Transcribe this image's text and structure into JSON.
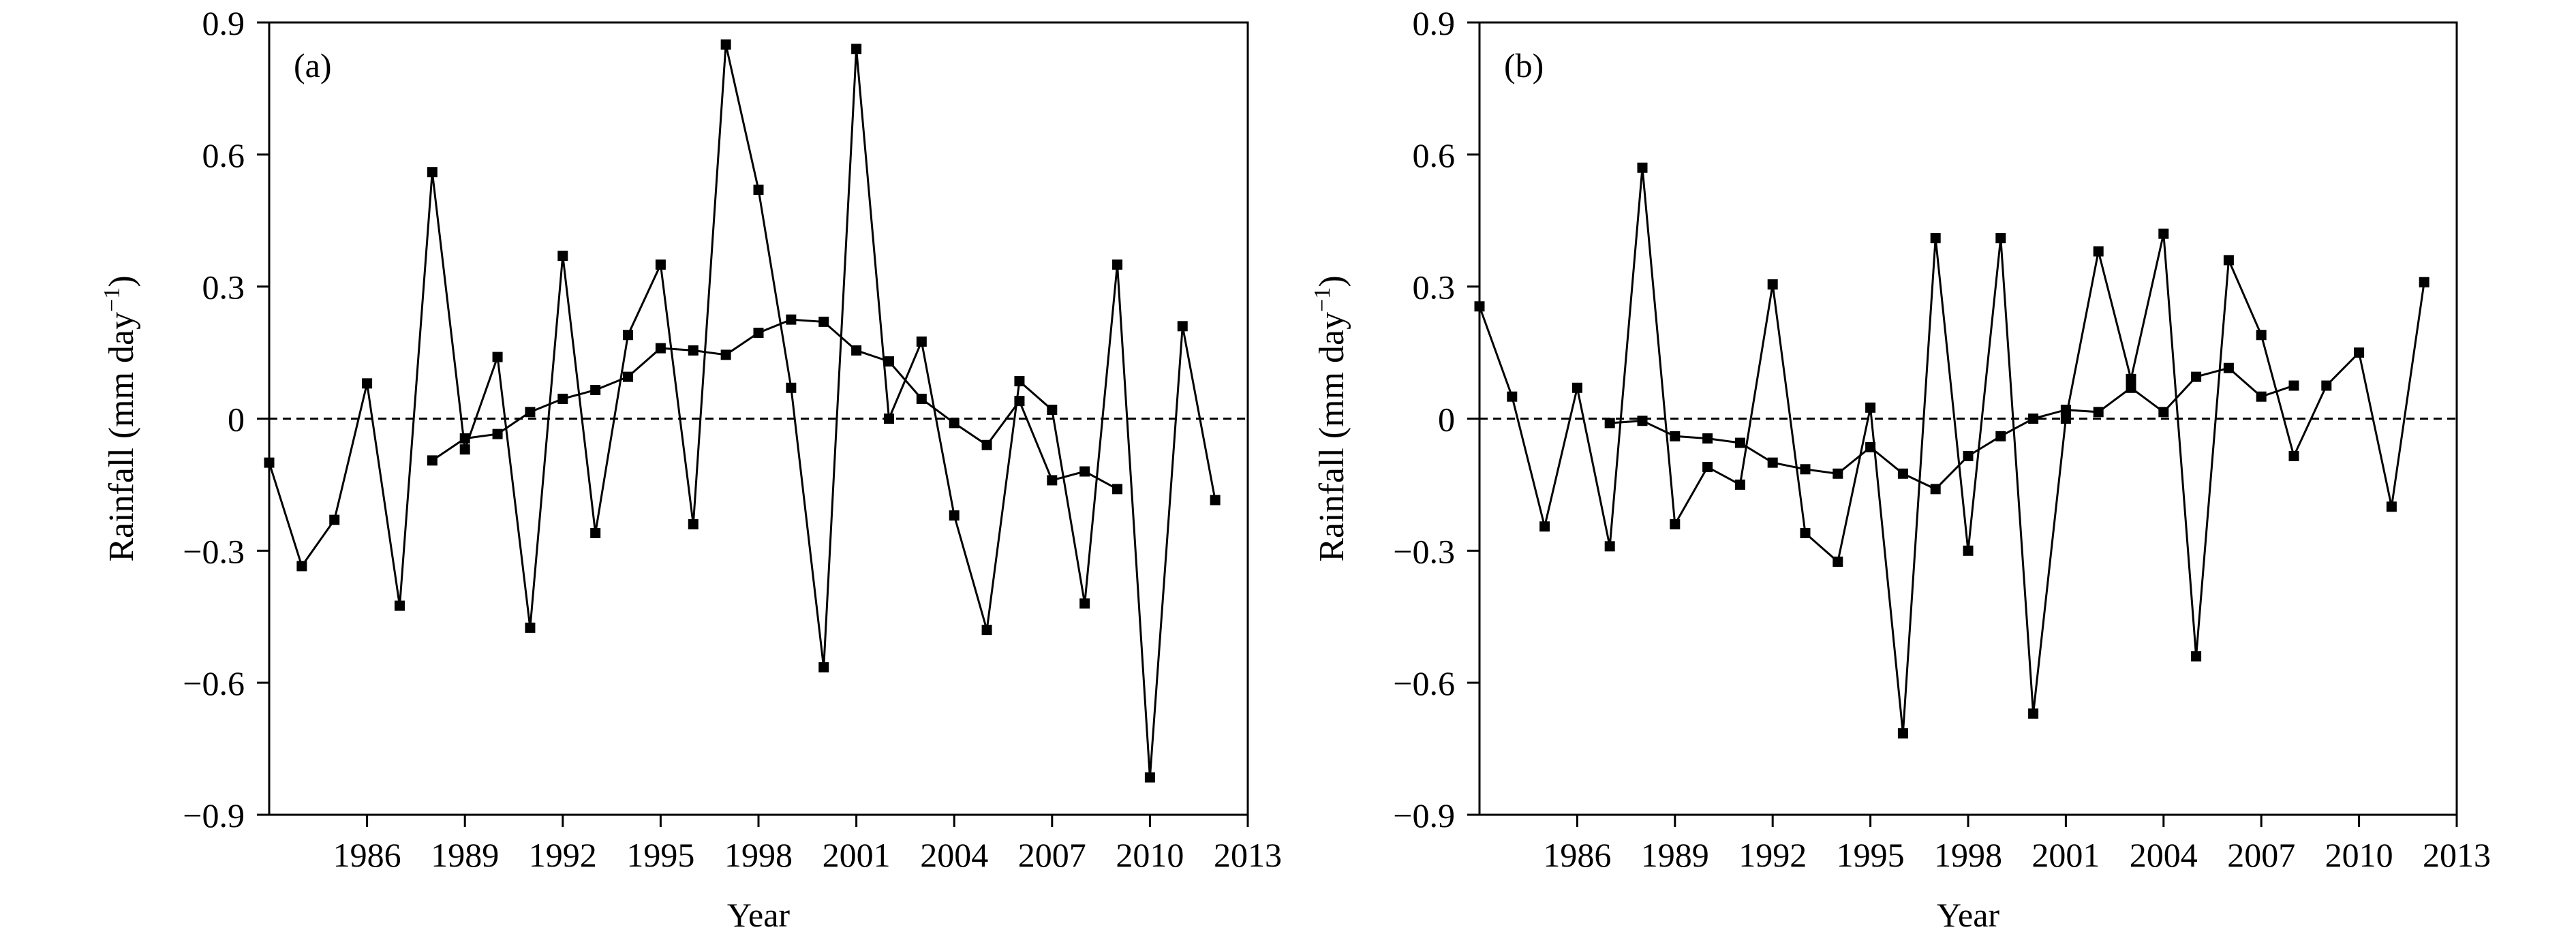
{
  "chart_data": [
    {
      "type": "line",
      "panel_label": "(a)",
      "xlabel": "Year",
      "ylabel": "Rainfall (mm day",
      "ylabel_sup": "−1",
      "ylabel_close": ")",
      "xlim": [
        1983,
        2013
      ],
      "ylim": [
        -0.9,
        0.9
      ],
      "xticks": [
        1986,
        1989,
        1992,
        1995,
        1998,
        2001,
        2004,
        2007,
        2010,
        2013
      ],
      "xtick_labels": [
        "1986",
        "1989",
        "1992",
        "1995",
        "1998",
        "2001",
        "2004",
        "2007",
        "2010",
        "2013"
      ],
      "yticks": [
        0.9,
        0.6,
        0.3,
        0,
        -0.3,
        -0.6,
        -0.9
      ],
      "ytick_labels": [
        "0.9",
        "0.6",
        "0.3",
        "0",
        "−0.3",
        "−0.6",
        "−0.9"
      ],
      "zero_line": "dashed",
      "series": [
        {
          "style": "solid-with-square-markers",
          "points": [
            [
              1983,
              -0.1
            ],
            [
              1984,
              -0.335
            ],
            [
              1985,
              -0.23
            ],
            [
              1986,
              0.08
            ],
            [
              1987,
              -0.425
            ],
            [
              1988,
              0.56
            ],
            [
              1989,
              -0.07
            ],
            [
              1990,
              0.14
            ],
            [
              1991,
              -0.475
            ],
            [
              1992,
              0.37
            ],
            [
              1993,
              -0.26
            ],
            [
              1994,
              0.19
            ],
            [
              1995,
              0.35
            ],
            [
              1996,
              -0.24
            ],
            [
              1997,
              0.85
            ],
            [
              1998,
              0.52
            ],
            [
              1999,
              0.07
            ],
            [
              2000,
              -0.565
            ],
            [
              2001,
              0.84
            ],
            [
              2002,
              0.0
            ],
            [
              2003,
              0.175
            ],
            [
              2004,
              -0.22
            ],
            [
              2005,
              -0.48
            ],
            [
              2006,
              0.085
            ],
            [
              2007,
              0.02
            ],
            [
              2008,
              -0.42
            ],
            [
              2009,
              0.35
            ],
            [
              2010,
              -0.815
            ],
            [
              2011,
              0.21
            ],
            [
              2012,
              -0.185
            ]
          ]
        },
        {
          "style": "solid-with-square-markers",
          "points": [
            [
              1988,
              -0.095
            ],
            [
              1989,
              -0.045
            ],
            [
              1990,
              -0.035
            ],
            [
              1991,
              0.015
            ],
            [
              1992,
              0.045
            ],
            [
              1993,
              0.065
            ],
            [
              1994,
              0.095
            ],
            [
              1995,
              0.16
            ],
            [
              1996,
              0.155
            ],
            [
              1997,
              0.145
            ],
            [
              1998,
              0.195
            ],
            [
              1999,
              0.225
            ],
            [
              2000,
              0.22
            ],
            [
              2001,
              0.155
            ],
            [
              2002,
              0.13
            ],
            [
              2003,
              0.045
            ],
            [
              2004,
              -0.01
            ],
            [
              2005,
              -0.06
            ],
            [
              2006,
              0.04
            ],
            [
              2007,
              -0.14
            ],
            [
              2008,
              -0.12
            ],
            [
              2009,
              -0.16
            ]
          ]
        }
      ]
    },
    {
      "type": "line",
      "panel_label": "(b)",
      "xlabel": "Year",
      "ylabel": "Rainfall (mm day",
      "ylabel_sup": "−1",
      "ylabel_close": ")",
      "xlim": [
        1983,
        2013
      ],
      "ylim": [
        -0.9,
        0.9
      ],
      "xticks": [
        1986,
        1989,
        1992,
        1995,
        1998,
        2001,
        2004,
        2007,
        2010,
        2013
      ],
      "xtick_labels": [
        "1986",
        "1989",
        "1992",
        "1995",
        "1998",
        "2001",
        "2004",
        "2007",
        "2010",
        "2013"
      ],
      "yticks": [
        0.9,
        0.6,
        0.3,
        0,
        -0.3,
        -0.6,
        -0.9
      ],
      "ytick_labels": [
        "0.9",
        "0.6",
        "0.3",
        "0",
        "−0.3",
        "−0.6",
        "−0.9"
      ],
      "zero_line": "dashed",
      "series": [
        {
          "style": "solid-with-square-markers",
          "points": [
            [
              1983,
              0.255
            ],
            [
              1984,
              0.05
            ],
            [
              1985,
              -0.245
            ],
            [
              1986,
              0.07
            ],
            [
              1987,
              -0.29
            ],
            [
              1988,
              0.57
            ],
            [
              1989,
              -0.24
            ],
            [
              1990,
              -0.11
            ],
            [
              1991,
              -0.15
            ],
            [
              1992,
              0.305
            ],
            [
              1993,
              -0.26
            ],
            [
              1994,
              -0.325
            ],
            [
              1995,
              0.025
            ],
            [
              1996,
              -0.715
            ],
            [
              1997,
              0.41
            ],
            [
              1998,
              -0.3
            ],
            [
              1999,
              0.41
            ],
            [
              2000,
              -0.67
            ],
            [
              2001,
              0.0
            ],
            [
              2002,
              0.38
            ],
            [
              2003,
              0.09
            ],
            [
              2004,
              0.42
            ],
            [
              2005,
              -0.54
            ],
            [
              2006,
              0.36
            ],
            [
              2007,
              0.19
            ],
            [
              2008,
              -0.085
            ],
            [
              2009,
              0.075
            ],
            [
              2010,
              0.15
            ],
            [
              2011,
              -0.2
            ],
            [
              2012,
              0.31
            ]
          ]
        },
        {
          "style": "solid-with-square-markers",
          "points": [
            [
              1987,
              -0.01
            ],
            [
              1988,
              -0.005
            ],
            [
              1989,
              -0.04
            ],
            [
              1990,
              -0.045
            ],
            [
              1991,
              -0.055
            ],
            [
              1992,
              -0.1
            ],
            [
              1993,
              -0.115
            ],
            [
              1994,
              -0.125
            ],
            [
              1995,
              -0.065
            ],
            [
              1996,
              -0.125
            ],
            [
              1997,
              -0.16
            ],
            [
              1998,
              -0.085
            ],
            [
              1999,
              -0.04
            ],
            [
              2000,
              0.0
            ],
            [
              2001,
              0.02
            ],
            [
              2002,
              0.015
            ],
            [
              2003,
              0.07
            ],
            [
              2004,
              0.015
            ],
            [
              2005,
              0.095
            ],
            [
              2006,
              0.115
            ],
            [
              2007,
              0.05
            ],
            [
              2008,
              0.075
            ]
          ]
        }
      ]
    }
  ]
}
